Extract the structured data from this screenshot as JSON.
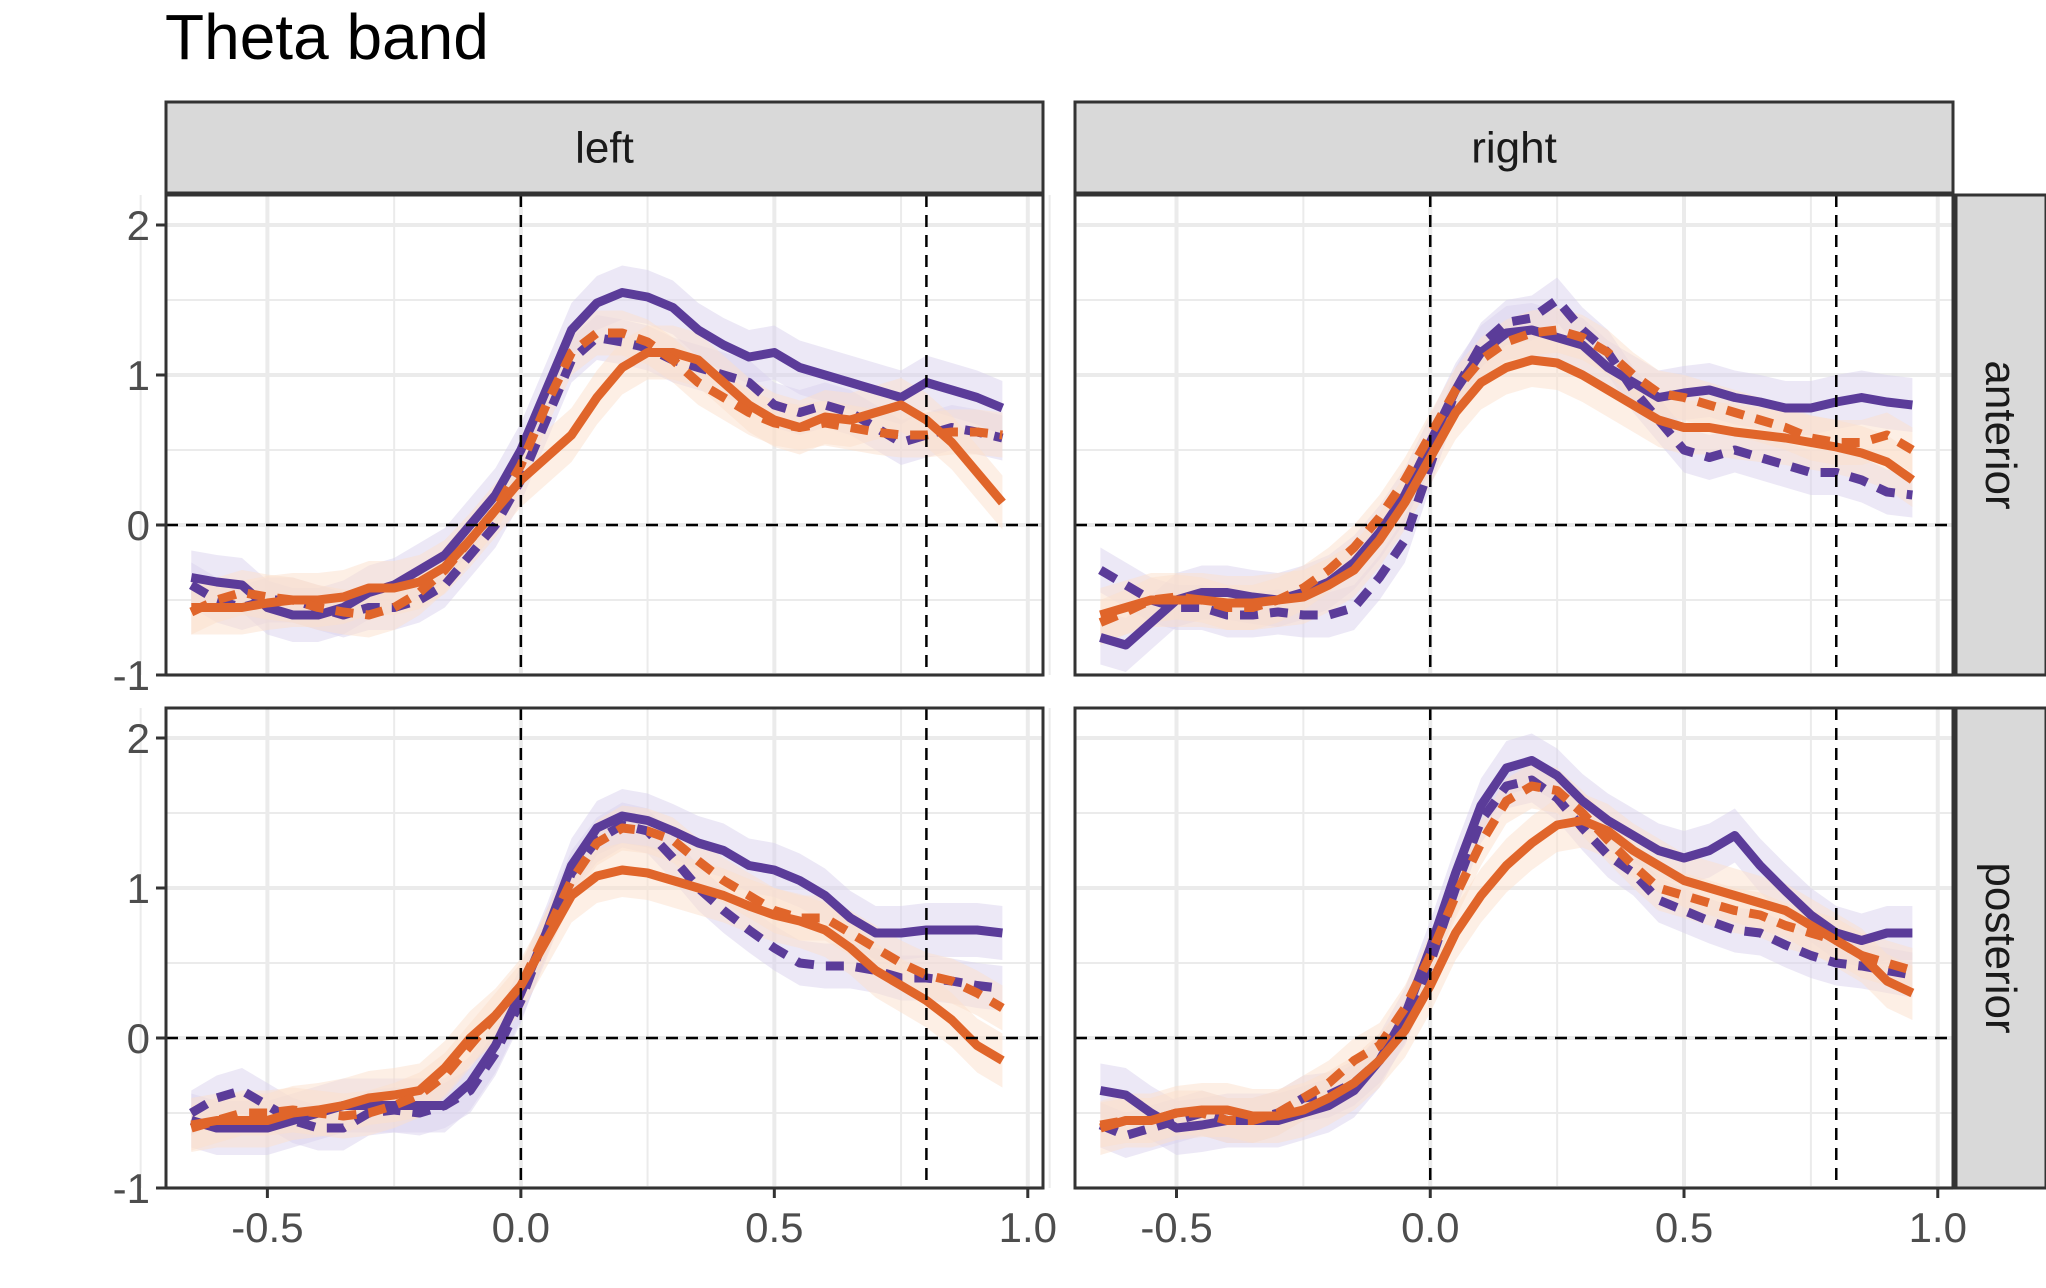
{
  "title": "Theta band",
  "colors": {
    "purple": "#5b3c99",
    "orange": "#e0652a",
    "purple_ribbon": "#d9d2ee",
    "orange_ribbon": "#fbe0cc",
    "strip_bg": "#d9d9d9",
    "grid": "#ebebeb",
    "tick_text": "#4d4d4d"
  },
  "chart_data": {
    "type": "line",
    "facets": {
      "columns": [
        "left",
        "right"
      ],
      "rows": [
        "anterior",
        "posterior"
      ]
    },
    "x_ticks": [
      -0.5,
      0.0,
      0.5,
      1.0
    ],
    "x_tick_labels": [
      "-0.5",
      "0.0",
      "0.5",
      "1.0"
    ],
    "y_ticks": [
      -1,
      0,
      1,
      2
    ],
    "y_tick_labels": [
      "-1",
      "0",
      "1",
      "2"
    ],
    "xlim": [
      -0.7,
      1.03
    ],
    "ylim": [
      -1.0,
      2.2
    ],
    "reference_lines": {
      "vertical": [
        0.0,
        0.8
      ],
      "horizontal": [
        0
      ]
    },
    "x": [
      -0.65,
      -0.6,
      -0.55,
      -0.5,
      -0.45,
      -0.4,
      -0.35,
      -0.3,
      -0.25,
      -0.2,
      -0.15,
      -0.1,
      -0.05,
      0.0,
      0.05,
      0.1,
      0.15,
      0.2,
      0.25,
      0.3,
      0.35,
      0.4,
      0.45,
      0.5,
      0.55,
      0.6,
      0.65,
      0.7,
      0.75,
      0.8,
      0.85,
      0.9,
      0.95
    ],
    "panels": [
      {
        "column": "left",
        "row": "anterior",
        "series": [
          {
            "color": "purple",
            "linetype": "solid",
            "values": [
              -0.35,
              -0.38,
              -0.4,
              -0.55,
              -0.6,
              -0.6,
              -0.55,
              -0.45,
              -0.4,
              -0.3,
              -0.2,
              0.0,
              0.2,
              0.5,
              0.9,
              1.3,
              1.48,
              1.55,
              1.52,
              1.45,
              1.3,
              1.2,
              1.12,
              1.15,
              1.05,
              1.0,
              0.95,
              0.9,
              0.85,
              0.95,
              0.9,
              0.85,
              0.78
            ]
          },
          {
            "color": "purple",
            "linetype": "dashed",
            "values": [
              -0.4,
              -0.5,
              -0.55,
              -0.5,
              -0.5,
              -0.55,
              -0.6,
              -0.55,
              -0.55,
              -0.5,
              -0.4,
              -0.2,
              0.0,
              0.3,
              0.7,
              1.1,
              1.25,
              1.22,
              1.18,
              1.1,
              1.05,
              1.0,
              0.95,
              0.8,
              0.75,
              0.8,
              0.75,
              0.65,
              0.55,
              0.6,
              0.65,
              0.62,
              0.58
            ]
          },
          {
            "color": "orange",
            "linetype": "solid",
            "values": [
              -0.55,
              -0.55,
              -0.55,
              -0.52,
              -0.5,
              -0.5,
              -0.48,
              -0.42,
              -0.42,
              -0.38,
              -0.28,
              -0.1,
              0.1,
              0.3,
              0.45,
              0.6,
              0.85,
              1.05,
              1.15,
              1.15,
              1.1,
              0.95,
              0.8,
              0.7,
              0.65,
              0.72,
              0.7,
              0.75,
              0.8,
              0.7,
              0.55,
              0.35,
              0.15
            ]
          },
          {
            "color": "orange",
            "linetype": "dashed",
            "values": [
              -0.58,
              -0.5,
              -0.45,
              -0.48,
              -0.5,
              -0.55,
              -0.58,
              -0.6,
              -0.55,
              -0.45,
              -0.3,
              -0.1,
              0.1,
              0.4,
              0.8,
              1.15,
              1.28,
              1.28,
              1.22,
              1.1,
              0.95,
              0.85,
              0.75,
              0.68,
              0.65,
              0.68,
              0.65,
              0.62,
              0.6,
              0.6,
              0.62,
              0.62,
              0.6
            ]
          }
        ]
      },
      {
        "column": "right",
        "row": "anterior",
        "series": [
          {
            "color": "purple",
            "linetype": "solid",
            "values": [
              -0.75,
              -0.8,
              -0.65,
              -0.5,
              -0.45,
              -0.45,
              -0.48,
              -0.5,
              -0.45,
              -0.38,
              -0.25,
              -0.05,
              0.2,
              0.55,
              0.9,
              1.15,
              1.28,
              1.3,
              1.25,
              1.2,
              1.05,
              0.95,
              0.85,
              0.88,
              0.9,
              0.85,
              0.82,
              0.78,
              0.78,
              0.82,
              0.85,
              0.82,
              0.8
            ]
          },
          {
            "color": "purple",
            "linetype": "dashed",
            "values": [
              -0.3,
              -0.4,
              -0.5,
              -0.55,
              -0.55,
              -0.6,
              -0.6,
              -0.58,
              -0.6,
              -0.6,
              -0.55,
              -0.35,
              -0.1,
              0.4,
              0.9,
              1.2,
              1.35,
              1.38,
              1.5,
              1.3,
              1.15,
              0.9,
              0.7,
              0.5,
              0.45,
              0.5,
              0.45,
              0.4,
              0.35,
              0.35,
              0.3,
              0.22,
              0.2
            ]
          },
          {
            "color": "orange",
            "linetype": "solid",
            "values": [
              -0.6,
              -0.55,
              -0.5,
              -0.5,
              -0.5,
              -0.52,
              -0.52,
              -0.5,
              -0.48,
              -0.4,
              -0.3,
              -0.1,
              0.15,
              0.45,
              0.75,
              0.95,
              1.05,
              1.1,
              1.08,
              1.0,
              0.9,
              0.8,
              0.7,
              0.65,
              0.65,
              0.62,
              0.6,
              0.58,
              0.55,
              0.52,
              0.48,
              0.42,
              0.3
            ]
          },
          {
            "color": "orange",
            "linetype": "dashed",
            "values": [
              -0.65,
              -0.58,
              -0.5,
              -0.48,
              -0.5,
              -0.55,
              -0.55,
              -0.5,
              -0.42,
              -0.3,
              -0.15,
              0.05,
              0.3,
              0.6,
              0.9,
              1.1,
              1.22,
              1.28,
              1.3,
              1.25,
              1.15,
              1.0,
              0.88,
              0.85,
              0.8,
              0.75,
              0.7,
              0.65,
              0.58,
              0.55,
              0.55,
              0.6,
              0.5
            ]
          }
        ]
      },
      {
        "column": "left",
        "row": "posterior",
        "series": [
          {
            "color": "purple",
            "linetype": "solid",
            "values": [
              -0.55,
              -0.6,
              -0.6,
              -0.6,
              -0.55,
              -0.5,
              -0.45,
              -0.45,
              -0.45,
              -0.45,
              -0.45,
              -0.3,
              -0.05,
              0.3,
              0.7,
              1.15,
              1.4,
              1.48,
              1.45,
              1.38,
              1.3,
              1.25,
              1.15,
              1.12,
              1.05,
              0.95,
              0.8,
              0.7,
              0.7,
              0.72,
              0.72,
              0.72,
              0.7
            ]
          },
          {
            "color": "purple",
            "linetype": "dashed",
            "values": [
              -0.5,
              -0.4,
              -0.35,
              -0.45,
              -0.55,
              -0.6,
              -0.6,
              -0.5,
              -0.48,
              -0.5,
              -0.45,
              -0.35,
              -0.1,
              0.25,
              0.7,
              1.1,
              1.32,
              1.42,
              1.38,
              1.2,
              1.0,
              0.85,
              0.72,
              0.6,
              0.5,
              0.48,
              0.48,
              0.45,
              0.4,
              0.4,
              0.38,
              0.35,
              0.33
            ]
          },
          {
            "color": "orange",
            "linetype": "solid",
            "values": [
              -0.58,
              -0.55,
              -0.55,
              -0.55,
              -0.5,
              -0.48,
              -0.45,
              -0.4,
              -0.38,
              -0.35,
              -0.2,
              0.0,
              0.15,
              0.35,
              0.65,
              0.95,
              1.08,
              1.12,
              1.1,
              1.05,
              1.0,
              0.95,
              0.88,
              0.82,
              0.78,
              0.72,
              0.6,
              0.45,
              0.35,
              0.25,
              0.12,
              -0.05,
              -0.15
            ]
          },
          {
            "color": "orange",
            "linetype": "dashed",
            "values": [
              -0.6,
              -0.55,
              -0.5,
              -0.5,
              -0.48,
              -0.5,
              -0.52,
              -0.5,
              -0.45,
              -0.38,
              -0.25,
              -0.05,
              0.15,
              0.35,
              0.7,
              1.05,
              1.3,
              1.4,
              1.38,
              1.32,
              1.18,
              1.05,
              0.95,
              0.85,
              0.8,
              0.8,
              0.7,
              0.6,
              0.5,
              0.42,
              0.38,
              0.3,
              0.2
            ]
          }
        ]
      },
      {
        "column": "right",
        "row": "posterior",
        "series": [
          {
            "color": "purple",
            "linetype": "solid",
            "values": [
              -0.35,
              -0.38,
              -0.5,
              -0.6,
              -0.58,
              -0.55,
              -0.55,
              -0.55,
              -0.5,
              -0.45,
              -0.35,
              -0.15,
              0.15,
              0.6,
              1.1,
              1.55,
              1.8,
              1.85,
              1.75,
              1.58,
              1.45,
              1.35,
              1.25,
              1.2,
              1.25,
              1.35,
              1.15,
              0.98,
              0.82,
              0.7,
              0.65,
              0.7,
              0.7
            ]
          },
          {
            "color": "purple",
            "linetype": "dashed",
            "values": [
              -0.58,
              -0.65,
              -0.6,
              -0.55,
              -0.5,
              -0.55,
              -0.55,
              -0.5,
              -0.4,
              -0.38,
              -0.3,
              -0.15,
              0.1,
              0.5,
              1.0,
              1.45,
              1.68,
              1.72,
              1.6,
              1.4,
              1.22,
              1.1,
              0.92,
              0.85,
              0.78,
              0.72,
              0.7,
              0.62,
              0.55,
              0.5,
              0.48,
              0.45,
              0.42
            ]
          },
          {
            "color": "orange",
            "linetype": "solid",
            "values": [
              -0.6,
              -0.55,
              -0.55,
              -0.5,
              -0.48,
              -0.48,
              -0.52,
              -0.52,
              -0.48,
              -0.4,
              -0.3,
              -0.15,
              0.05,
              0.35,
              0.7,
              0.95,
              1.15,
              1.3,
              1.42,
              1.45,
              1.38,
              1.25,
              1.15,
              1.05,
              1.0,
              0.95,
              0.9,
              0.85,
              0.75,
              0.65,
              0.55,
              0.38,
              0.3
            ]
          },
          {
            "color": "orange",
            "linetype": "dashed",
            "values": [
              -0.58,
              -0.55,
              -0.55,
              -0.5,
              -0.5,
              -0.55,
              -0.55,
              -0.5,
              -0.4,
              -0.3,
              -0.15,
              -0.05,
              0.2,
              0.55,
              0.95,
              1.3,
              1.58,
              1.68,
              1.65,
              1.5,
              1.32,
              1.15,
              1.0,
              0.95,
              0.9,
              0.85,
              0.82,
              0.75,
              0.7,
              0.65,
              0.55,
              0.5,
              0.45
            ]
          }
        ]
      }
    ]
  }
}
